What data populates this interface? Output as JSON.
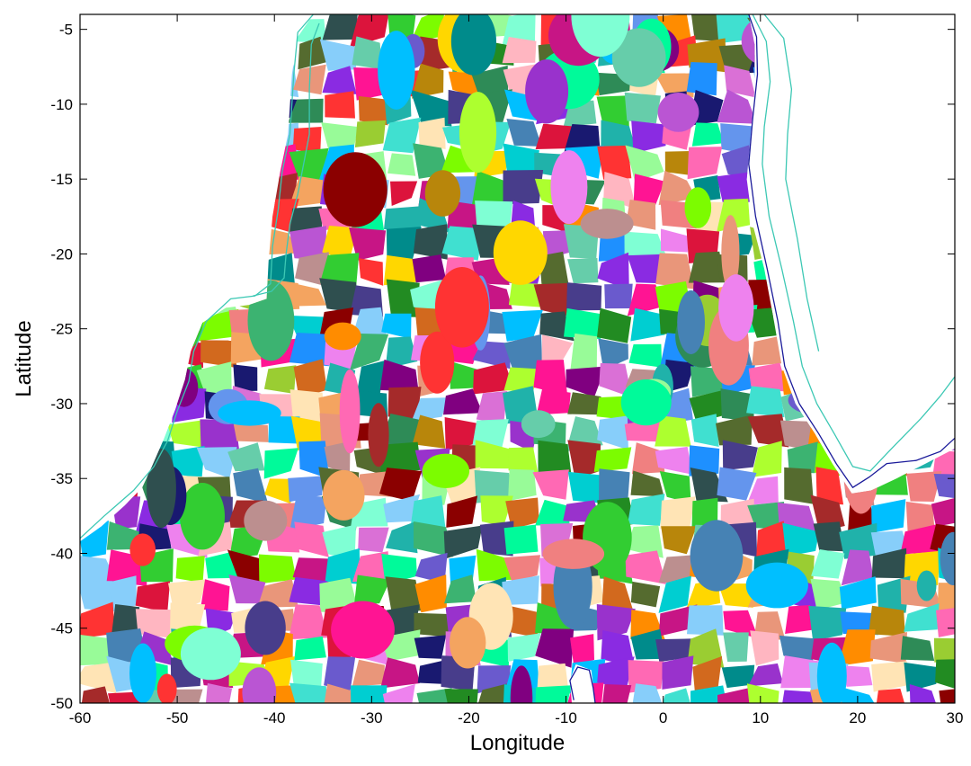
{
  "chart_data": {
    "type": "heatmap",
    "title": "",
    "xlabel": "Longitude",
    "ylabel": "Latitude",
    "xlim": [
      -60,
      30
    ],
    "ylim": [
      -50,
      -4
    ],
    "x_ticks": [
      -60,
      -50,
      -40,
      -30,
      -20,
      -10,
      0,
      10,
      20,
      30
    ],
    "y_ticks": [
      -5,
      -10,
      -15,
      -20,
      -25,
      -30,
      -35,
      -40,
      -45,
      -50
    ],
    "x_tick_labels": [
      "-60",
      "-50",
      "-40",
      "-30",
      "-20",
      "-10",
      "0",
      "10",
      "20",
      "30"
    ],
    "y_tick_labels": [
      "-5",
      "-10",
      "-15",
      "-20",
      "-25",
      "-30",
      "-35",
      "-40",
      "-45",
      "-50"
    ],
    "grid": false,
    "coastline_colors": [
      "#3cc8b4",
      "#1a1a9a"
    ],
    "coastlines": [
      {
        "name": "",
        "color": "#3cc8b4",
        "points": [
          [
            -25.2,
            -4
          ],
          [
            -36,
            -4
          ],
          [
            -37.6,
            -5.2
          ],
          [
            -38,
            -8
          ],
          [
            -38.4,
            -12
          ],
          [
            -39.2,
            -14.5
          ],
          [
            -39.6,
            -17
          ],
          [
            -40.2,
            -19.5
          ],
          [
            -40.4,
            -22
          ],
          [
            -42,
            -22.8
          ],
          [
            -44.5,
            -23
          ],
          [
            -47,
            -24.5
          ],
          [
            -48.3,
            -26.5
          ],
          [
            -48.8,
            -28.5
          ],
          [
            -50,
            -30.5
          ],
          [
            -51,
            -32.5
          ],
          [
            -52.4,
            -34.2
          ],
          [
            -54.5,
            -35.8
          ],
          [
            -57.5,
            -37.5
          ],
          [
            -60,
            -39
          ]
        ]
      },
      {
        "name": "",
        "color": "#3cc8b4",
        "points": [
          [
            -35.4,
            -4.6
          ],
          [
            -36.2,
            -6
          ],
          [
            -36.4,
            -9
          ],
          [
            -36.4,
            -12
          ],
          [
            -37,
            -14
          ],
          [
            -37.6,
            -16
          ],
          [
            -38.4,
            -18
          ],
          [
            -38.8,
            -20
          ],
          [
            -39,
            -21.6
          ],
          [
            -40.3,
            -22.5
          ],
          [
            -42.2,
            -22.8
          ]
        ]
      },
      {
        "name": "",
        "color": "#1a1a9a",
        "points": [
          [
            -9.2,
            -49.8
          ],
          [
            -9.6,
            -48.5
          ],
          [
            -8.8,
            -47.6
          ],
          [
            -7.6,
            -47.8
          ],
          [
            -7.2,
            -49
          ],
          [
            -7,
            -50
          ]
        ]
      },
      {
        "name": "",
        "color": "#1a1a9a",
        "points": [
          [
            8.8,
            -4
          ],
          [
            9.6,
            -5.5
          ],
          [
            9.7,
            -8
          ],
          [
            9.2,
            -11
          ],
          [
            8.8,
            -14
          ],
          [
            9.5,
            -17.5
          ],
          [
            10.7,
            -21
          ],
          [
            11.8,
            -24.5
          ],
          [
            12.5,
            -27.5
          ],
          [
            14,
            -30
          ],
          [
            16,
            -32
          ],
          [
            17.8,
            -34
          ],
          [
            19.5,
            -35.6
          ],
          [
            21.2,
            -34.9
          ],
          [
            23,
            -34
          ],
          [
            26,
            -33.8
          ],
          [
            28.5,
            -33.2
          ],
          [
            30,
            -32.3
          ]
        ]
      },
      {
        "name": "",
        "color": "#3cc8b4",
        "points": [
          [
            9.2,
            -4
          ],
          [
            10.6,
            -5.8
          ],
          [
            11,
            -8.5
          ],
          [
            10.4,
            -11.5
          ],
          [
            10.2,
            -14
          ],
          [
            10.9,
            -17.5
          ],
          [
            12.2,
            -21
          ],
          [
            13.4,
            -24.5
          ],
          [
            14.3,
            -27.5
          ],
          [
            15.8,
            -30
          ],
          [
            17.6,
            -32
          ],
          [
            19.5,
            -34.2
          ],
          [
            21.3,
            -34.5
          ],
          [
            23.5,
            -33
          ],
          [
            26.5,
            -31
          ],
          [
            28.5,
            -29.5
          ],
          [
            30,
            -28.2
          ]
        ]
      },
      {
        "name": "",
        "color": "#3cc8b4",
        "points": [
          [
            10.4,
            -4
          ],
          [
            12.4,
            -5.6
          ],
          [
            13.2,
            -9
          ],
          [
            12.8,
            -12
          ],
          [
            12.6,
            -15
          ],
          [
            13.8,
            -19
          ],
          [
            14.8,
            -23
          ],
          [
            16,
            -26.5
          ]
        ]
      }
    ],
    "colored_region": {
      "description_colors": [
        "#2e8b57",
        "#ff3333",
        "#3cb371",
        "#8a2be2",
        "#ffd700",
        "#00ced1",
        "#ff69b4",
        "#6a5acd",
        "#ff8c00",
        "#20b2aa",
        "#dc143c",
        "#7cfc00",
        "#4682b4",
        "#da70d6",
        "#b8860b",
        "#00fa9a",
        "#c71585",
        "#1e90ff",
        "#9acd32",
        "#8b0000",
        "#40e0d0",
        "#ba55d3",
        "#228b22",
        "#f08080",
        "#483d8b",
        "#adff2f",
        "#008b8b",
        "#e9967a",
        "#9932cc",
        "#66cdaa",
        "#ffb6c1",
        "#191970",
        "#f4a460",
        "#7fffd4",
        "#a52a2a",
        "#87cefa",
        "#556b2f",
        "#ee82ee",
        "#2f4f4f",
        "#ffe4b5",
        "#00bfff",
        "#bc8f8f",
        "#32cd32",
        "#d2691e",
        "#6495ed",
        "#ff1493",
        "#98fb98",
        "#800080"
      ],
      "outline": [
        [
          -36,
          -4
        ],
        [
          -25,
          -4
        ],
        [
          -10,
          -4
        ],
        [
          0,
          -4
        ],
        [
          8.8,
          -4
        ],
        [
          9.4,
          -6
        ],
        [
          9.4,
          -9
        ],
        [
          9,
          -12
        ],
        [
          8.6,
          -15
        ],
        [
          9.2,
          -18
        ],
        [
          10.4,
          -21
        ],
        [
          11.4,
          -24.5
        ],
        [
          12.2,
          -27.5
        ],
        [
          13.6,
          -30
        ],
        [
          15.6,
          -32
        ],
        [
          17.4,
          -34
        ],
        [
          19.4,
          -36
        ],
        [
          21.4,
          -35.8
        ],
        [
          24,
          -35
        ],
        [
          27,
          -34
        ],
        [
          30,
          -33
        ],
        [
          30,
          -50
        ],
        [
          -7,
          -50
        ],
        [
          -7.4,
          -47.8
        ],
        [
          -9,
          -47.4
        ],
        [
          -9.6,
          -48.5
        ],
        [
          -9.4,
          -50
        ],
        [
          -60,
          -50
        ],
        [
          -60,
          -39.2
        ],
        [
          -57.8,
          -38.2
        ],
        [
          -55.4,
          -36.8
        ],
        [
          -53.6,
          -35.6
        ],
        [
          -52.6,
          -34.2
        ],
        [
          -51.4,
          -32.4
        ],
        [
          -50.2,
          -30.4
        ],
        [
          -49.2,
          -28.4
        ],
        [
          -48.6,
          -26.5
        ],
        [
          -47.4,
          -24.6
        ],
        [
          -45,
          -23.6
        ],
        [
          -42.6,
          -23.4
        ],
        [
          -40.8,
          -23
        ],
        [
          -40.6,
          -20.5
        ],
        [
          -40.2,
          -17.5
        ],
        [
          -39.4,
          -14.5
        ],
        [
          -38.6,
          -12
        ],
        [
          -38.2,
          -8
        ],
        [
          -37.6,
          -5.5
        ],
        [
          -36,
          -4
        ]
      ]
    }
  }
}
